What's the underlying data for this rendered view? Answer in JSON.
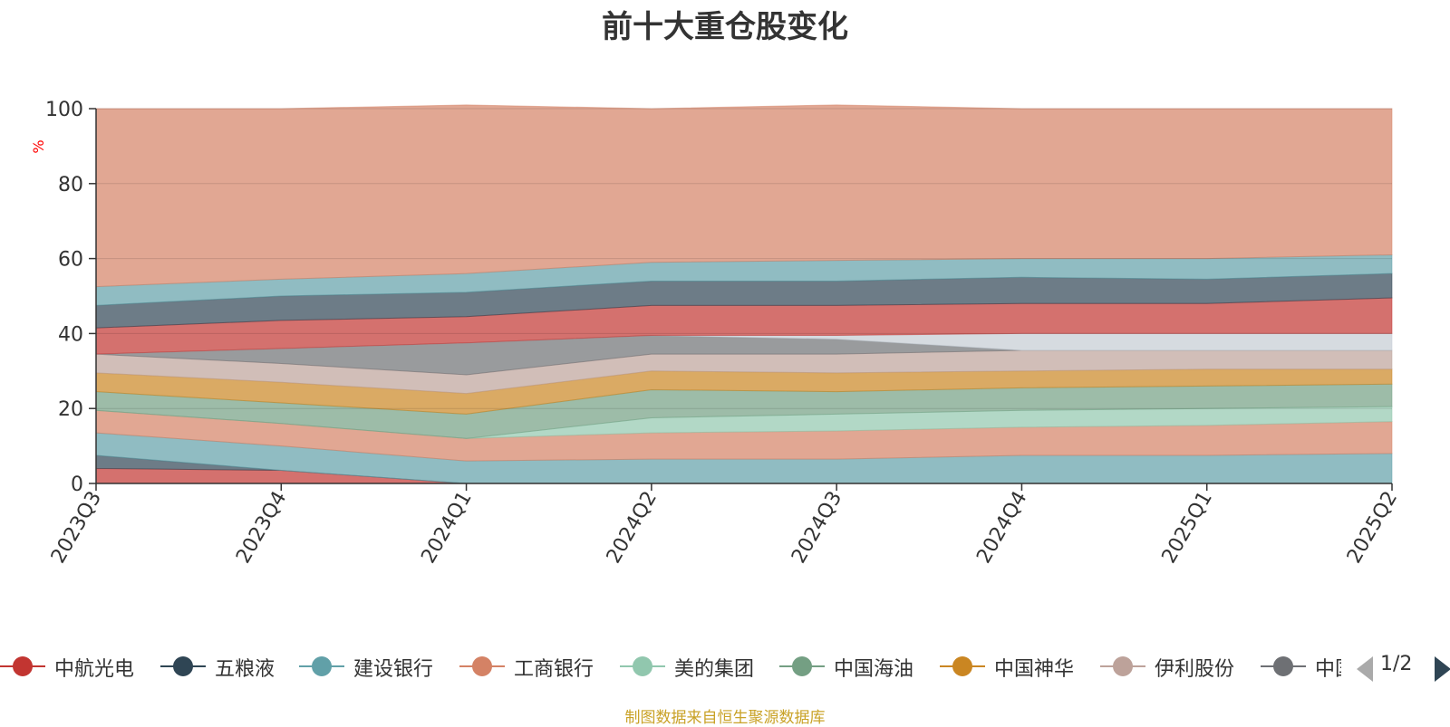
{
  "title": "前十大重仓股变化",
  "source_note": "制图数据来自恒生聚源数据库",
  "legend_page": "1/2",
  "chart_data": {
    "type": "area",
    "stacked": true,
    "title": "前十大重仓股变化",
    "ylabel": "%",
    "xlabel": "",
    "ylim": [
      0,
      100
    ],
    "yticks": [
      0,
      20,
      40,
      60,
      80,
      100
    ],
    "grid": true,
    "legend_position": "bottom",
    "categories": [
      "2023Q3",
      "2023Q4",
      "2024Q1",
      "2024Q2",
      "2024Q3",
      "2024Q4",
      "2025Q1",
      "2025Q2"
    ],
    "series": [
      {
        "name": "中航光电",
        "color": "#c23531",
        "values": [
          4,
          3.5,
          0,
          0,
          0,
          0,
          0,
          0
        ]
      },
      {
        "name": "五粮液",
        "color": "#2f4554",
        "values": [
          3.5,
          0,
          0,
          0,
          0,
          0,
          0,
          0
        ]
      },
      {
        "name": "建设银行",
        "color": "#61a0a8",
        "values": [
          6,
          6.5,
          6,
          6.5,
          6.5,
          7.5,
          7.5,
          8
        ]
      },
      {
        "name": "工商银行",
        "color": "#d48265",
        "values": [
          6,
          6,
          6,
          7,
          7.5,
          7.5,
          8,
          8.5
        ]
      },
      {
        "name": "美的集团",
        "color": "#91c7ae",
        "values": [
          0,
          0,
          0,
          4,
          4.5,
          4.5,
          4.5,
          4
        ]
      },
      {
        "name": "中国海油",
        "color": "#749f83",
        "values": [
          5,
          5.5,
          6.5,
          7.5,
          6,
          6,
          6,
          6
        ]
      },
      {
        "name": "中国神华",
        "color": "#ca8622",
        "values": [
          5,
          5.5,
          5.5,
          5,
          5,
          4.5,
          4.5,
          4
        ]
      },
      {
        "name": "伊利股份",
        "color": "#bda29a",
        "values": [
          5,
          5,
          5,
          4.5,
          5,
          5.5,
          5,
          5
        ]
      },
      {
        "name": "中国",
        "color": "#6e7074",
        "values": [
          0,
          4,
          8.5,
          5,
          4,
          0,
          0,
          0
        ]
      },
      {
        "name": "",
        "color": "#c4ccd3",
        "values": [
          0,
          0,
          0,
          0,
          1,
          4.5,
          4.5,
          4.5
        ]
      },
      {
        "name": "",
        "color": "#c23531",
        "values": [
          7,
          7.5,
          7,
          8,
          8,
          8,
          8,
          9.5
        ]
      },
      {
        "name": "",
        "color": "#2f4554",
        "values": [
          6,
          6.5,
          6.5,
          6.5,
          6.5,
          7,
          6.5,
          6.5
        ]
      },
      {
        "name": "",
        "color": "#61a0a8",
        "values": [
          5,
          4.5,
          5,
          5,
          5.5,
          5,
          5.5,
          5
        ]
      },
      {
        "name": "",
        "color": "#d48265",
        "values": [
          47.5,
          45.5,
          45,
          41,
          41.5,
          40,
          40,
          39
        ]
      }
    ]
  }
}
